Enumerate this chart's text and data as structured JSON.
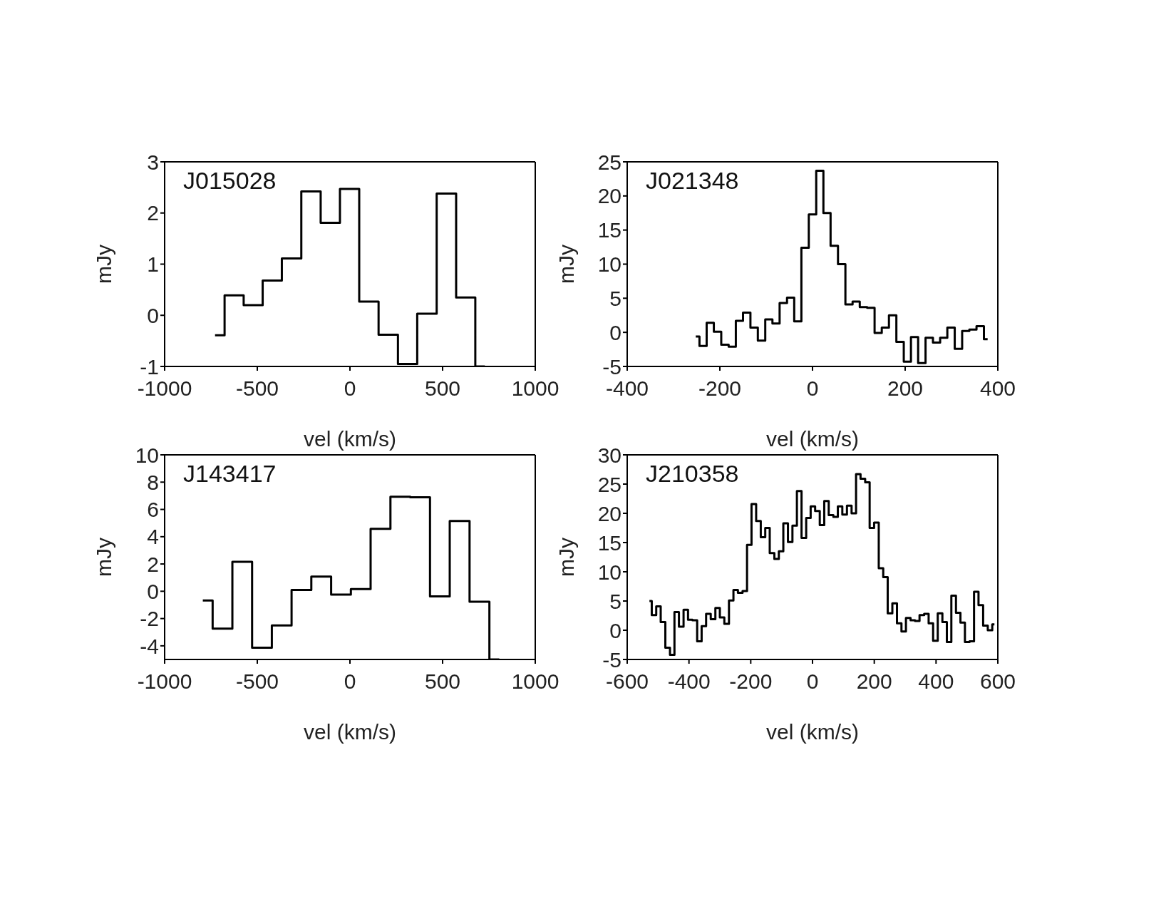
{
  "chart_data": [
    {
      "type": "step",
      "title": "J015028",
      "xlabel": "vel (km/s)",
      "ylabel": "mJy",
      "xlim": [
        -1000,
        1000
      ],
      "xticks": [
        -1000,
        -500,
        0,
        500,
        1000
      ],
      "ylim": [
        -1,
        3
      ],
      "yticks": [
        -1,
        0,
        1,
        2,
        3
      ],
      "series": [
        {
          "color": "#000000",
          "x": [
            -728,
            -625,
            -522,
            -420,
            -315,
            -210,
            -106,
            -2,
            102,
            207,
            311,
            415,
            521,
            625,
            728
          ],
          "values": [
            -0.39,
            0.39,
            0.2,
            0.68,
            1.11,
            2.42,
            1.81,
            2.47,
            0.27,
            -0.38,
            -0.95,
            0.03,
            2.38,
            0.35,
            -1
          ]
        }
      ]
    },
    {
      "type": "step",
      "title": "J021348",
      "xlabel": "vel (km/s)",
      "ylabel": "mJy",
      "xlim": [
        -400,
        400
      ],
      "xticks": [
        -400,
        -200,
        0,
        200,
        400
      ],
      "ylim": [
        -5,
        25
      ],
      "yticks": [
        -5,
        0,
        5,
        10,
        15,
        20,
        25
      ],
      "series": [
        {
          "color": "#000000",
          "x": [
            -252,
            -236,
            -221,
            -205,
            -189,
            -173,
            -158,
            -142,
            -126,
            -110,
            -94,
            -79,
            -63,
            -47,
            -32,
            -16,
            0,
            16,
            31,
            47,
            63,
            79,
            94,
            110,
            126,
            142,
            157,
            173,
            189,
            205,
            220,
            236,
            252,
            268,
            283,
            299,
            315,
            331,
            346,
            362,
            378
          ],
          "values": [
            -0.6,
            -2.0,
            1.4,
            0.1,
            -1.8,
            -2.1,
            1.7,
            2.9,
            0.7,
            -1.2,
            1.9,
            1.3,
            4.3,
            5.1,
            1.6,
            12.4,
            17.3,
            23.7,
            17.5,
            12.7,
            10.0,
            4.1,
            4.5,
            3.7,
            3.6,
            -0.1,
            0.7,
            2.5,
            -1.4,
            -4.3,
            -0.7,
            -4.5,
            -0.8,
            -1.5,
            -0.8,
            0.7,
            -2.4,
            0.2,
            0.4,
            0.9,
            -1.0
          ]
        }
      ]
    },
    {
      "type": "step",
      "title": "J143417",
      "xlabel": "vel (km/s)",
      "ylabel": "mJy",
      "xlim": [
        -1000,
        1000
      ],
      "xticks": [
        -1000,
        -500,
        0,
        500,
        1000
      ],
      "ylim": [
        -5,
        10
      ],
      "yticks": [
        -4,
        -2,
        0,
        2,
        4,
        6,
        8,
        10
      ],
      "series": [
        {
          "color": "#000000",
          "x": [
            -794,
            -688,
            -581,
            -475,
            -368,
            -262,
            -155,
            -48,
            58,
            165,
            272,
            379,
            485,
            592,
            699,
            806
          ],
          "values": [
            -0.68,
            -2.74,
            2.16,
            -4.14,
            -2.5,
            0.1,
            1.07,
            -0.25,
            0.16,
            4.58,
            6.93,
            6.89,
            -0.37,
            5.15,
            -0.76,
            -5
          ]
        }
      ]
    },
    {
      "type": "step",
      "title": "J210358",
      "xlabel": "vel (km/s)",
      "ylabel": "mJy",
      "xlim": [
        -600,
        600
      ],
      "xticks": [
        -600,
        -400,
        -200,
        0,
        200,
        400,
        600
      ],
      "ylim": [
        -5,
        30
      ],
      "yticks": [
        -5,
        0,
        5,
        10,
        15,
        20,
        25,
        30
      ],
      "series": [
        {
          "color": "#000000",
          "x": [
            -528,
            -513,
            -499,
            -484,
            -469,
            -454,
            -440,
            -425,
            -410,
            -396,
            -381,
            -366,
            -352,
            -337,
            -322,
            -307,
            -293,
            -278,
            -263,
            -249,
            -234,
            -219,
            -205,
            -190,
            -175,
            -160,
            -146,
            -131,
            -116,
            -102,
            -87,
            -72,
            -58,
            -43,
            -28,
            -13,
            1,
            16,
            31,
            45,
            60,
            75,
            89,
            104,
            119,
            134,
            148,
            163,
            178,
            192,
            207,
            222,
            236,
            251,
            266,
            281,
            295,
            310,
            325,
            339,
            354,
            369,
            383,
            398,
            413,
            428,
            442,
            457,
            472,
            486,
            501,
            516,
            530,
            545,
            560,
            575,
            589
          ],
          "values": [
            5.0,
            2.6,
            4.1,
            1.4,
            -3.0,
            -4.2,
            3.1,
            0.6,
            3.5,
            1.8,
            1.7,
            -1.9,
            0.7,
            2.8,
            1.9,
            3.8,
            2.2,
            1.1,
            5.1,
            6.9,
            6.4,
            6.7,
            14.6,
            21.6,
            18.7,
            15.9,
            17.5,
            13.2,
            12.2,
            13.5,
            18.3,
            15.1,
            17.9,
            23.8,
            15.8,
            19.2,
            21.2,
            20.4,
            18.0,
            22.1,
            19.7,
            19.4,
            21.2,
            19.8,
            21.3,
            20.0,
            26.7,
            25.9,
            25.3,
            17.5,
            18.4,
            10.6,
            9.1,
            2.9,
            4.6,
            1.2,
            -0.2,
            2.1,
            1.7,
            1.6,
            2.6,
            2.8,
            1.2,
            -1.8,
            2.9,
            1.4,
            -2.0,
            5.9,
            3.0,
            1.3,
            -2.0,
            -1.9,
            6.6,
            4.3,
            0.8,
            0.0,
            1.0
          ]
        }
      ]
    }
  ]
}
